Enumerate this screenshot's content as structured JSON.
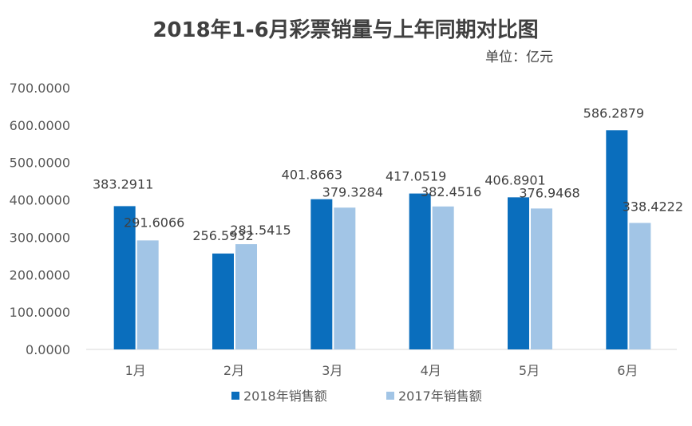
{
  "chart_data": {
    "type": "bar",
    "title": "2018年1-6月彩票销量与上年同期对比图",
    "subtitle": "单位：亿元",
    "categories": [
      "1月",
      "2月",
      "3月",
      "4月",
      "5月",
      "6月"
    ],
    "series": [
      {
        "name": "2018年销售额",
        "color": "#0a6ebd",
        "values": [
          383.2911,
          256.5932,
          401.8663,
          417.0519,
          406.8901,
          586.2879
        ],
        "labels": [
          "383.2911",
          "256.5932",
          "401.8663",
          "417.0519",
          "406.8901",
          "586.2879"
        ]
      },
      {
        "name": "2017年销售额",
        "color": "#a2c5e6",
        "values": [
          291.6066,
          281.5415,
          379.3284,
          382.4516,
          376.9468,
          338.4222
        ],
        "labels": [
          "291.6066",
          "281.5415",
          "379.3284",
          "382.4516",
          "376.9468",
          "338.4222"
        ]
      }
    ],
    "ylim": [
      0,
      700
    ],
    "yticks": [
      "0.0000",
      "100.0000",
      "200.0000",
      "300.0000",
      "400.0000",
      "500.0000",
      "600.0000",
      "700.0000"
    ],
    "grid": false,
    "legend_position": "bottom"
  }
}
